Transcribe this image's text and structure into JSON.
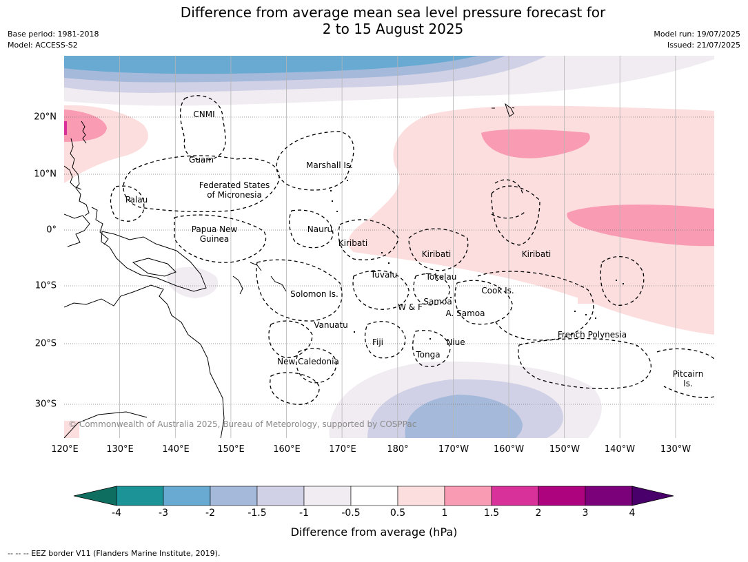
{
  "title": {
    "line1": "Difference from average mean sea level pressure forecast for",
    "line2": "2 to 15 August 2025"
  },
  "meta": {
    "base_period": "Base period: 1981-2018",
    "model": "Model: ACCESS-S2",
    "model_run": "Model run: 19/07/2025",
    "issued": "Issued: 21/07/2025"
  },
  "axes": {
    "lat_labels": [
      "20°N",
      "10°N",
      "0°",
      "10°S",
      "20°S",
      "30°S"
    ],
    "lon_labels": [
      "120°E",
      "130°E",
      "140°E",
      "150°E",
      "160°E",
      "170°E",
      "180°",
      "170°W",
      "160°W",
      "150°W",
      "140°W",
      "130°W"
    ]
  },
  "regions": {
    "cnmi": "CNMI",
    "guam": "Guam",
    "marshall": "Marshall Is.",
    "fsm_line1": "Federated States",
    "fsm_line2": "of Micronesia",
    "palau": "Palau",
    "png_line1": "Papua New",
    "png_line2": "Guinea",
    "nauru": "Nauru",
    "kiribati_west": "Kiribati",
    "kiribati_central": "Kiribati",
    "kiribati_east": "Kiribati",
    "tuvalu": "Tuvalu",
    "tokelau": "Tokelau",
    "cook": "Cook Is.",
    "solomon": "Solomon Is.",
    "samoa": "Samoa",
    "wf": "W & F",
    "asamoa": "A. Samoa",
    "vanuatu": "Vanuatu",
    "fiji": "Fiji",
    "niue": "Niue",
    "tonga": "Tonga",
    "french_polynesia": "French Polynesia",
    "new_caledonia": "New Caledonia",
    "pitcairn_line1": "Pitcairn",
    "pitcairn_line2": "Is."
  },
  "copyright": "© Commonwealth of Australia 2025, Bureau of Meteorology, supported by COSPPac",
  "colorbar": {
    "title": "Difference from average (hPa)",
    "ticks": [
      "-4",
      "-3",
      "-2",
      "-1.5",
      "-1",
      "-0.5",
      "0.5",
      "1",
      "1.5",
      "2",
      "3",
      "4"
    ],
    "colors": [
      "#0e6e60",
      "#1b9397",
      "#68aad2",
      "#a5b9da",
      "#d0d1e6",
      "#f1ecf2",
      "#ffffff",
      "#fddede",
      "#f89bb3",
      "#d9319a",
      "#ad037e",
      "#7b017b",
      "#4a006a"
    ]
  },
  "footnote": "--  --  -- EEZ border V11 (Flanders Marine Institute, 2019)."
}
